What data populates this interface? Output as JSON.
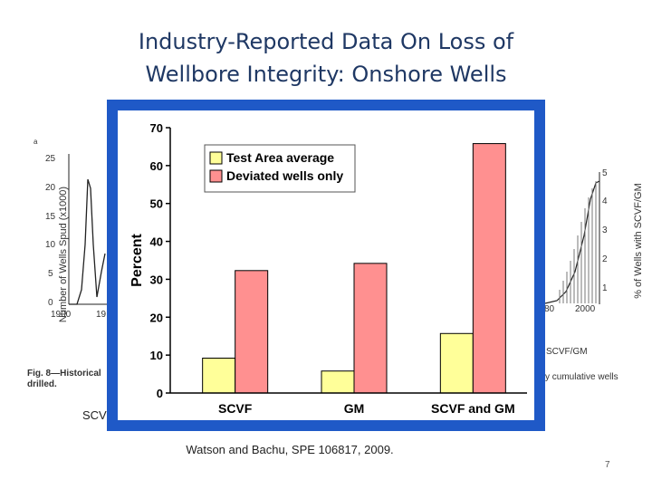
{
  "slide": {
    "title": "Industry-Reported Data On Loss of\nWellbore Integrity:  Onshore Wells",
    "source": "Watson and Bachu, SPE 106817, 2009.",
    "page_number": "7",
    "partial_label": "SCV"
  },
  "background_figure": {
    "corner_label": "a",
    "y_axis_label": "Number of Wells Spud (x1000)",
    "y_ticks": [
      "25",
      "20",
      "15",
      "10",
      "5",
      "0"
    ],
    "x_ticks_visible": [
      "1900",
      "19",
      "80",
      "2000"
    ],
    "y_axis_label_right": "% of Wells with SCVF/GM",
    "y_ticks_right": [
      "5",
      "4",
      "3",
      "2",
      "1"
    ],
    "caption_left": "Fig. 8—Historical\ndrilled.",
    "caption_right": "y cumulative wells",
    "legend_right": "SCVF/GM"
  },
  "chart_data": {
    "type": "bar",
    "categories": [
      "SCVF",
      "GM",
      "SCVF and GM"
    ],
    "series": [
      {
        "name": "Test Area average",
        "values": [
          9.2,
          5.8,
          15.7
        ],
        "color": "#ffff99"
      },
      {
        "name": "Deviated wells only",
        "values": [
          32.3,
          34.2,
          65.8
        ],
        "color": "#ff9090"
      }
    ],
    "ylabel": "Percent",
    "ylim": [
      0,
      70
    ],
    "yticks": [
      0,
      10,
      20,
      30,
      40,
      50,
      60,
      70
    ],
    "legend_position": "top-left",
    "grid": false
  }
}
